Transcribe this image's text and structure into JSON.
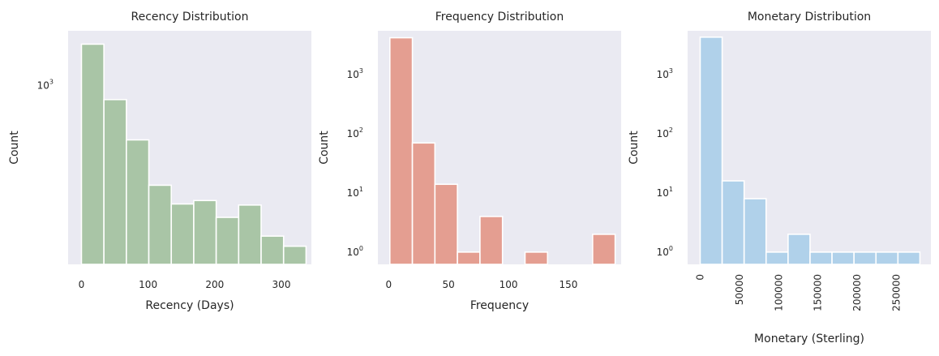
{
  "chart_data": [
    {
      "type": "bar",
      "title": "Recency Distribution",
      "xlabel": "Recency (Days)",
      "ylabel": "Count",
      "yscale": "log",
      "color": "#a9c5a6",
      "xlim": [
        -20,
        345
      ],
      "ylim": [
        105,
        2000
      ],
      "xticks": [
        "0",
        "100",
        "200",
        "300"
      ],
      "xtick_values": [
        0,
        100,
        200,
        300
      ],
      "yticks": [
        {
          "base": "10",
          "exp": "3",
          "value": 1000
        }
      ],
      "bins": [
        {
          "x0": 0,
          "x1": 33.7,
          "count": 1690
        },
        {
          "x0": 33.7,
          "x1": 67.4,
          "count": 840
        },
        {
          "x0": 67.4,
          "x1": 101.1,
          "count": 505
        },
        {
          "x0": 101.1,
          "x1": 134.8,
          "count": 285
        },
        {
          "x0": 134.8,
          "x1": 168.5,
          "count": 225
        },
        {
          "x0": 168.5,
          "x1": 202.2,
          "count": 235
        },
        {
          "x0": 202.2,
          "x1": 235.9,
          "count": 190
        },
        {
          "x0": 235.9,
          "x1": 269.6,
          "count": 222
        },
        {
          "x0": 269.6,
          "x1": 303.3,
          "count": 150
        },
        {
          "x0": 303.3,
          "x1": 337,
          "count": 132
        }
      ]
    },
    {
      "type": "bar",
      "title": "Frequency Distribution",
      "xlabel": "Frequency",
      "ylabel": "Count",
      "yscale": "log",
      "color": "#e49e91",
      "xlim": [
        -9,
        194
      ],
      "ylim": [
        0.62,
        5500
      ],
      "xticks": [
        "0",
        "50",
        "100",
        "150"
      ],
      "xtick_values": [
        0,
        50,
        100,
        150
      ],
      "yticks": [
        {
          "base": "10",
          "exp": "0",
          "value": 1
        },
        {
          "base": "10",
          "exp": "1",
          "value": 10
        },
        {
          "base": "10",
          "exp": "2",
          "value": 100
        },
        {
          "base": "10",
          "exp": "3",
          "value": 1000
        }
      ],
      "bins": [
        {
          "x0": 1,
          "x1": 19.8,
          "count": 4200
        },
        {
          "x0": 19.8,
          "x1": 38.6,
          "count": 70
        },
        {
          "x0": 38.6,
          "x1": 57.4,
          "count": 14
        },
        {
          "x0": 57.4,
          "x1": 76.2,
          "count": 1
        },
        {
          "x0": 76.2,
          "x1": 95,
          "count": 4
        },
        {
          "x0": 95,
          "x1": 113.8,
          "count": 0
        },
        {
          "x0": 113.8,
          "x1": 132.6,
          "count": 1
        },
        {
          "x0": 132.6,
          "x1": 151.4,
          "count": 0
        },
        {
          "x0": 151.4,
          "x1": 170.2,
          "count": 0
        },
        {
          "x0": 170.2,
          "x1": 189,
          "count": 2
        }
      ]
    },
    {
      "type": "bar",
      "title": "Monetary Distribution",
      "xlabel": "Monetary (Sterling)",
      "ylabel": "Count",
      "yscale": "log",
      "color": "#b0d1ea",
      "xlim": [
        -16000,
        294000
      ],
      "ylim": [
        0.62,
        5500
      ],
      "xticks": [
        "0",
        "50000",
        "100000",
        "150000",
        "200000",
        "250000"
      ],
      "xtick_values": [
        0,
        50000,
        100000,
        150000,
        200000,
        250000
      ],
      "xtick_rotation": 90,
      "yticks": [
        {
          "base": "10",
          "exp": "0",
          "value": 1
        },
        {
          "base": "10",
          "exp": "1",
          "value": 10
        },
        {
          "base": "10",
          "exp": "2",
          "value": 100
        },
        {
          "base": "10",
          "exp": "3",
          "value": 1000
        }
      ],
      "bins": [
        {
          "x0": 0,
          "x1": 28000,
          "count": 4300
        },
        {
          "x0": 28000,
          "x1": 56000,
          "count": 16
        },
        {
          "x0": 56000,
          "x1": 84000,
          "count": 8
        },
        {
          "x0": 84000,
          "x1": 112000,
          "count": 1
        },
        {
          "x0": 112000,
          "x1": 140000,
          "count": 2
        },
        {
          "x0": 140000,
          "x1": 168000,
          "count": 1
        },
        {
          "x0": 168000,
          "x1": 196000,
          "count": 1
        },
        {
          "x0": 196000,
          "x1": 224000,
          "count": 1
        },
        {
          "x0": 224000,
          "x1": 252000,
          "count": 1
        },
        {
          "x0": 252000,
          "x1": 280000,
          "count": 1
        }
      ]
    }
  ]
}
